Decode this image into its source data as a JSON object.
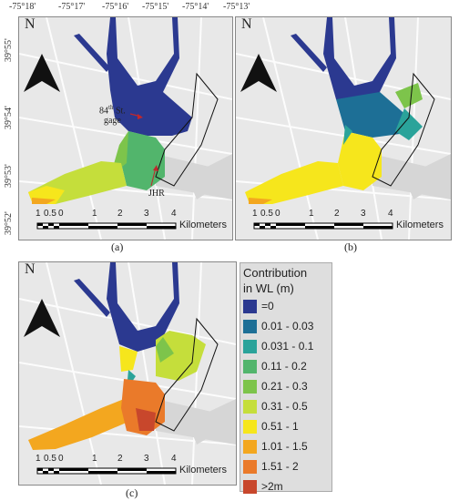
{
  "top_coords": [
    "-75°18'",
    "-75°17'",
    "-75°16'",
    "-75°15'",
    "-75°14'",
    "-75°13'"
  ],
  "left_coords": [
    "39°55'",
    "39°54'",
    "39°53'",
    "39°52'"
  ],
  "north_label": "N",
  "scale": {
    "ticks": [
      "1",
      "0.5",
      "0",
      "1",
      "2",
      "3",
      "4"
    ],
    "unit": "Kilometers"
  },
  "panels": [
    {
      "caption": "(a)"
    },
    {
      "caption": "(b)"
    },
    {
      "caption": "(c)"
    }
  ],
  "annotations": {
    "gage_line1": "84",
    "gage_sup": "th",
    "gage_line1b": " St.",
    "gage_line2": "gage",
    "jhr": "JHR"
  },
  "legend": {
    "title_line1": "Contribution",
    "title_line2": "in WL (m)",
    "items": [
      {
        "label": "=0",
        "color": "#2b3990"
      },
      {
        "label": "0.01 - 0.03",
        "color": "#1d6f96"
      },
      {
        "label": "0.031 - 0.1",
        "color": "#2aa39a"
      },
      {
        "label": "0.11 - 0.2",
        "color": "#52b56c"
      },
      {
        "label": "0.21 - 0.3",
        "color": "#7dc44b"
      },
      {
        "label": "0.31 - 0.5",
        "color": "#c5de3b"
      },
      {
        "label": "0.51 - 1",
        "color": "#f6e61c"
      },
      {
        "label": "1.01 - 1.5",
        "color": "#f3a71f"
      },
      {
        "label": "1.51 - 2",
        "color": "#ea7a2a"
      },
      {
        "label": ">2m",
        "color": "#c8472c"
      }
    ]
  }
}
